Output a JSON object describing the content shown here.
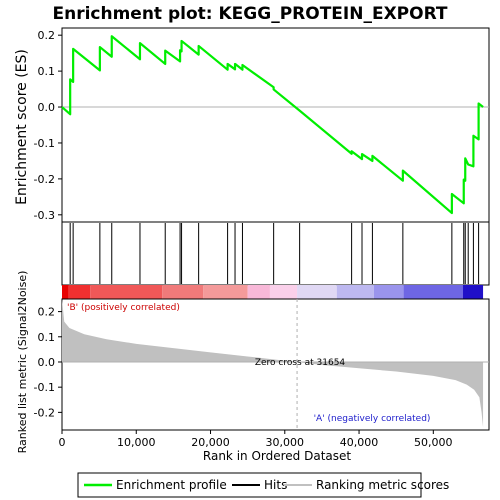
{
  "chart_data": {
    "type": "line",
    "title": "Enrichment plot: KEGG_PROTEIN_EXPORT",
    "es_panel": {
      "ylabel": "Enrichment score (ES)",
      "ylim": [
        -0.32,
        0.22
      ],
      "yticks": [
        0.2,
        0.1,
        0.0,
        -0.1,
        -0.2,
        -0.3
      ],
      "ytick_labels": [
        "0.2",
        "0.1",
        "0.0",
        "-0.1",
        "-0.2",
        "-0.3"
      ],
      "grid": false
    },
    "metric_panel": {
      "ylabel": "Ranked list metric (Signal2Noise)",
      "ylim": [
        -0.27,
        0.25
      ],
      "yticks": [
        0.2,
        0.1,
        0.0,
        -0.1,
        -0.2
      ],
      "ytick_labels": [
        "0.2",
        "0.1",
        "0.0",
        "-0.1",
        "-0.2"
      ],
      "xlabel": "Rank in Ordered Dataset",
      "xticks": [
        0,
        10000,
        20000,
        30000,
        40000,
        50000
      ],
      "xtick_labels": [
        "0",
        "10,000",
        "20,000",
        "30,000",
        "40,000",
        "50,000"
      ],
      "xlim": [
        0,
        57500
      ],
      "positive_label": "'B' (positively correlated)",
      "negative_label": "'A' (negatively correlated)",
      "zero_cross_label": "Zero cross at 31654",
      "zero_cross": 31654,
      "n_genes": 56700,
      "metric_curve": [
        [
          0,
          0.25
        ],
        [
          300,
          0.16
        ],
        [
          1000,
          0.135
        ],
        [
          3000,
          0.11
        ],
        [
          6000,
          0.09
        ],
        [
          10000,
          0.072
        ],
        [
          15000,
          0.055
        ],
        [
          20000,
          0.038
        ],
        [
          25000,
          0.022
        ],
        [
          28000,
          0.012
        ],
        [
          31654,
          0.0
        ],
        [
          35000,
          -0.012
        ],
        [
          40000,
          -0.025
        ],
        [
          45000,
          -0.038
        ],
        [
          50000,
          -0.055
        ],
        [
          53000,
          -0.072
        ],
        [
          54500,
          -0.09
        ],
        [
          55500,
          -0.11
        ],
        [
          56200,
          -0.14
        ],
        [
          56500,
          -0.2
        ],
        [
          56700,
          -0.26
        ]
      ]
    },
    "hits": [
      1100,
      1500,
      5100,
      6700,
      10500,
      13900,
      15900,
      16100,
      18400,
      22300,
      23300,
      24300,
      28500,
      32000,
      39000,
      40400,
      41800,
      45900,
      52500,
      54100,
      54300,
      54700,
      55400,
      56100
    ],
    "enrichment_profile": [
      [
        0,
        0.0
      ],
      [
        1100,
        -0.02
      ],
      [
        1100,
        0.077
      ],
      [
        1500,
        0.07
      ],
      [
        1500,
        0.162
      ],
      [
        5100,
        0.102
      ],
      [
        5100,
        0.167
      ],
      [
        6700,
        0.14
      ],
      [
        6700,
        0.197
      ],
      [
        10500,
        0.133
      ],
      [
        10500,
        0.178
      ],
      [
        13900,
        0.12
      ],
      [
        13900,
        0.157
      ],
      [
        15900,
        0.127
      ],
      [
        15900,
        0.158
      ],
      [
        16100,
        0.155
      ],
      [
        16100,
        0.184
      ],
      [
        18400,
        0.146
      ],
      [
        18400,
        0.17
      ],
      [
        22300,
        0.104
      ],
      [
        22300,
        0.12
      ],
      [
        23300,
        0.105
      ],
      [
        23300,
        0.12
      ],
      [
        24300,
        0.104
      ],
      [
        24300,
        0.117
      ],
      [
        28500,
        0.055
      ],
      [
        28500,
        0.049
      ],
      [
        32000,
        -0.01
      ],
      [
        39000,
        -0.13
      ],
      [
        39000,
        -0.123
      ],
      [
        40400,
        -0.145
      ],
      [
        40400,
        -0.131
      ],
      [
        41800,
        -0.15
      ],
      [
        41800,
        -0.136
      ],
      [
        45900,
        -0.205
      ],
      [
        45900,
        -0.177
      ],
      [
        52500,
        -0.295
      ],
      [
        52500,
        -0.242
      ],
      [
        54100,
        -0.268
      ],
      [
        54100,
        -0.202
      ],
      [
        54300,
        -0.205
      ],
      [
        54300,
        -0.143
      ],
      [
        54700,
        -0.16
      ],
      [
        54700,
        -0.16
      ],
      [
        55400,
        -0.165
      ],
      [
        55400,
        -0.08
      ],
      [
        56100,
        -0.09
      ],
      [
        56100,
        0.01
      ],
      [
        56700,
        0.0
      ]
    ],
    "legend": [
      "Enrichment profile",
      "Hits",
      "Ranking metric scores"
    ],
    "colors": {
      "profile": "#00ee00",
      "hits": "#000000",
      "metric": "#c0c0c0",
      "zero_line": "#b0b0b0",
      "positive_text": "#cc0000",
      "negative_text": "#2020cc"
    },
    "colorbar": [
      {
        "from": 0,
        "to": 900,
        "color": "#e80000"
      },
      {
        "from": 900,
        "to": 3800,
        "color": "#f03030"
      },
      {
        "from": 3800,
        "to": 13500,
        "color": "#f05858"
      },
      {
        "from": 13500,
        "to": 19000,
        "color": "#f07a7a"
      },
      {
        "from": 19000,
        "to": 25000,
        "color": "#f49a9a"
      },
      {
        "from": 25000,
        "to": 28000,
        "color": "#f8b8d8"
      },
      {
        "from": 28000,
        "to": 31654,
        "color": "#fad0ea"
      },
      {
        "from": 31654,
        "to": 37000,
        "color": "#e0d8f4"
      },
      {
        "from": 37000,
        "to": 42000,
        "color": "#bdb8f0"
      },
      {
        "from": 42000,
        "to": 46000,
        "color": "#9a94ec"
      },
      {
        "from": 46000,
        "to": 54000,
        "color": "#6e66e4"
      },
      {
        "from": 54000,
        "to": 56700,
        "color": "#2010c8"
      }
    ]
  }
}
